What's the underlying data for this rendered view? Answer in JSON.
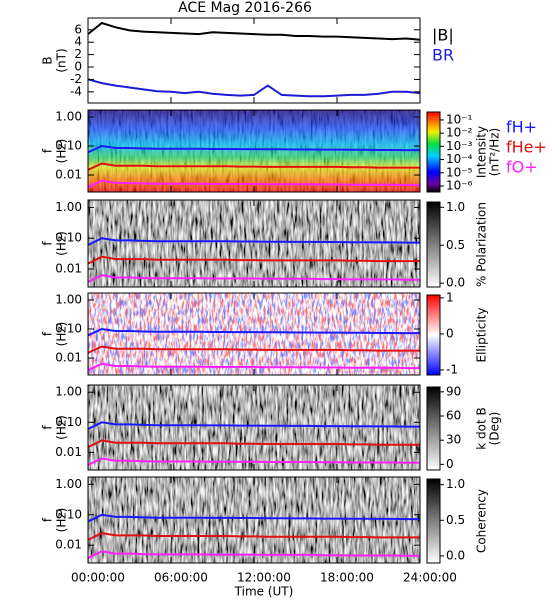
{
  "chart_data": [
    {
      "type": "line",
      "title": "ACE Mag 2016-266",
      "ylabel": [
        "B",
        "(nT)"
      ],
      "ylim": [
        -5.8,
        7.9
      ],
      "yticks": [
        -4,
        -2,
        0,
        2,
        4,
        6
      ],
      "legend": "right",
      "x": [
        0,
        1,
        2,
        3,
        4,
        5,
        6,
        7,
        8,
        9,
        10,
        11,
        12,
        13,
        14,
        15,
        16,
        17,
        18,
        19,
        20,
        21,
        22,
        23,
        24
      ],
      "series": [
        {
          "name": "|B|",
          "color": "#000000",
          "values": [
            5.3,
            7.1,
            6.4,
            5.9,
            5.7,
            5.6,
            5.5,
            5.4,
            5.3,
            5.6,
            5.5,
            5.4,
            5.3,
            5.2,
            5.2,
            5.0,
            5.0,
            4.9,
            4.9,
            4.8,
            4.7,
            4.6,
            4.5,
            4.6,
            4.4
          ]
        },
        {
          "name": "BR",
          "color": "#1c1cd6",
          "values": [
            -2.0,
            -2.6,
            -3.0,
            -3.3,
            -3.6,
            -3.9,
            -4.0,
            -4.2,
            -4.0,
            -4.3,
            -4.5,
            -4.6,
            -4.5,
            -3.0,
            -4.5,
            -4.6,
            -4.7,
            -4.7,
            -4.6,
            -4.5,
            -4.5,
            -4.3,
            -4.0,
            -4.0,
            -4.2
          ]
        }
      ]
    },
    {
      "type": "spectrogram",
      "ylabel": [
        "f",
        "(Hz)"
      ],
      "log_y": true,
      "ylim": [
        0.0026,
        1.74
      ],
      "yticks": [
        {
          "value": 1,
          "label": "1.00"
        },
        {
          "value": 0.1,
          "label": "0.10"
        },
        {
          "value": 0.01,
          "label": "0.01"
        }
      ],
      "legend": "right",
      "series": [
        {
          "name": "fH+",
          "color": "#1a1aff",
          "values": [
            0.06,
            0.1,
            0.085,
            0.085,
            0.082,
            0.08,
            0.08,
            0.08,
            0.08,
            0.079,
            0.079,
            0.078,
            0.078,
            0.077,
            0.077,
            0.076,
            0.076,
            0.075,
            0.075,
            0.074,
            0.074,
            0.073,
            0.073,
            0.072,
            0.072
          ]
        },
        {
          "name": "fHe+",
          "color": "#e01010",
          "values": [
            0.015,
            0.025,
            0.021,
            0.021,
            0.021,
            0.02,
            0.02,
            0.02,
            0.02,
            0.02,
            0.02,
            0.0195,
            0.0195,
            0.019,
            0.019,
            0.019,
            0.019,
            0.019,
            0.019,
            0.0185,
            0.0185,
            0.018,
            0.018,
            0.018,
            0.018
          ]
        },
        {
          "name": "fO+",
          "color": "#ff20ff",
          "values": [
            0.0038,
            0.0063,
            0.0053,
            0.0053,
            0.0051,
            0.005,
            0.005,
            0.005,
            0.005,
            0.0049,
            0.0049,
            0.0049,
            0.0049,
            0.0048,
            0.0048,
            0.0048,
            0.0048,
            0.0047,
            0.0047,
            0.0046,
            0.0046,
            0.0046,
            0.0046,
            0.0045,
            0.0045
          ]
        }
      ],
      "colorbar": {
        "label": [
          "Intensity",
          "(nT²/Hz)"
        ],
        "colormap": "rainbow",
        "log": true,
        "lim": [
          3.5e-07,
          0.4
        ],
        "ticks": [
          {
            "value": 0.1,
            "label": "10⁻¹"
          },
          {
            "value": 0.01,
            "label": "10⁻²"
          },
          {
            "value": 0.001,
            "label": "10⁻³"
          },
          {
            "value": 0.0001,
            "label": "10⁻⁴"
          },
          {
            "value": 1e-05,
            "label": "10⁻⁵"
          },
          {
            "value": 1e-06,
            "label": "10⁻⁶"
          }
        ]
      }
    },
    {
      "type": "spectrogram",
      "ylabel": [
        "f",
        "(Hz)"
      ],
      "log_y": true,
      "ylim": [
        0.0026,
        1.74
      ],
      "yticks": [
        {
          "value": 1,
          "label": "1.00"
        },
        {
          "value": 0.1,
          "label": "0.10"
        },
        {
          "value": 0.01,
          "label": "0.01"
        }
      ],
      "colorbar": {
        "label": [
          "% Polarization"
        ],
        "colormap": "gray",
        "lim": [
          -0.05,
          1.07
        ],
        "ticks": [
          {
            "value": 1,
            "label": "1.0"
          },
          {
            "value": 0.5,
            "label": "0.5"
          },
          {
            "value": 0,
            "label": "0.0"
          }
        ]
      }
    },
    {
      "type": "spectrogram",
      "ylabel": [
        "f",
        "(Hz)"
      ],
      "log_y": true,
      "ylim": [
        0.0026,
        1.74
      ],
      "yticks": [
        {
          "value": 1,
          "label": "1.00"
        },
        {
          "value": 0.1,
          "label": "0.10"
        },
        {
          "value": 0.01,
          "label": "0.01"
        }
      ],
      "colorbar": {
        "label": [
          "Ellipticity"
        ],
        "colormap": "bwr",
        "lim": [
          -1.14,
          1.08
        ],
        "ticks": [
          1,
          0,
          -1
        ]
      }
    },
    {
      "type": "spectrogram",
      "ylabel": [
        "f",
        "(Hz)"
      ],
      "log_y": true,
      "ylim": [
        0.0026,
        1.74
      ],
      "yticks": [
        {
          "value": 1,
          "label": "1.00"
        },
        {
          "value": 0.1,
          "label": "0.10"
        },
        {
          "value": 0.01,
          "label": "0.01"
        }
      ],
      "colorbar": {
        "label": [
          "k dot B",
          "(Deg)"
        ],
        "colormap": "gray",
        "lim": [
          -7,
          96
        ],
        "ticks": [
          90,
          60,
          30,
          0
        ]
      }
    },
    {
      "type": "spectrogram",
      "ylabel": [
        "f",
        "(Hz)"
      ],
      "log_y": true,
      "ylim": [
        0.0026,
        1.74
      ],
      "yticks": [
        {
          "value": 1,
          "label": "1.00"
        },
        {
          "value": 0.1,
          "label": "0.10"
        },
        {
          "value": 0.01,
          "label": "0.01"
        }
      ],
      "colorbar": {
        "label": [
          "Coherency"
        ],
        "colormap": "gray",
        "lim": [
          -0.1,
          1.08
        ],
        "ticks": [
          {
            "value": 1,
            "label": "1.0"
          },
          {
            "value": 0.5,
            "label": "0.5"
          },
          {
            "value": 0,
            "label": "0.0"
          }
        ]
      },
      "xlabel": "Time (UT)",
      "xlim": [
        0,
        24
      ],
      "xticks": [
        {
          "value": 0,
          "label": "00:00:00"
        },
        {
          "value": 6,
          "label": "06:00:00"
        },
        {
          "value": 12,
          "label": "12:00:00"
        },
        {
          "value": 18,
          "label": "18:00:00"
        },
        {
          "value": 24,
          "label": "24:00:00"
        }
      ]
    }
  ]
}
